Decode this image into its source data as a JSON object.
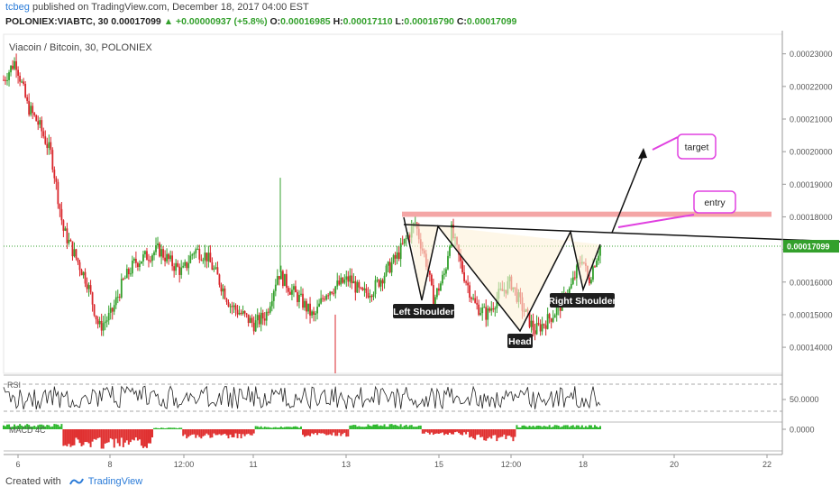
{
  "header": {
    "user": "tcbeg",
    "published_text": " published on TradingView.com, December 18, 2017 04:00 EST",
    "symbol_line": "POLONIEX:VIABTC, 30",
    "price": "0.00017099",
    "change": "▲ +0.00000937 (+5.8%)",
    "o_label": "O:",
    "o_value": "0.00016985",
    "h_label": "H:",
    "h_value": "0.00017110",
    "l_label": "L:",
    "l_value": "0.00016790",
    "c_label": "C:",
    "c_value": "0.00017099"
  },
  "footer": {
    "created_with": "Created with",
    "brand": "TradingView"
  },
  "chart_data": {
    "type": "candlestick",
    "title": "Viacoin / Bitcoin, 30, POLONIEX",
    "ylim": [
      0.000132,
      0.000236
    ],
    "y_ticks": [
      "0.00014000",
      "0.00015000",
      "0.00016000",
      "0.00017000",
      "0.00018000",
      "0.00019000",
      "0.00020000",
      "0.00021000",
      "0.00022000",
      "0.00023000"
    ],
    "y_tick_values": [
      0.00014,
      0.00015,
      0.00016,
      0.00017,
      0.00018,
      0.00019,
      0.0002,
      0.00021,
      0.00022,
      0.00023
    ],
    "x_ticks": [
      "6",
      "8",
      "12:00",
      "11",
      "13",
      "15",
      "12:00",
      "18",
      "20",
      "22"
    ],
    "last_price_label": "0.00017099",
    "last_price": 0.00017099,
    "colors": {
      "up": "#33a02c",
      "down": "#d9262b",
      "rsi_line": "#222222",
      "macd_pos": "#2eb82e",
      "macd_neg": "#e03030",
      "pattern_line": "#111111",
      "resistance_zone": "#f08080",
      "annotation": "#e040e0",
      "price_line": "#33a02c"
    },
    "price_path": [
      [
        0.0,
        0.000222
      ],
      [
        0.02,
        0.000228
      ],
      [
        0.04,
        0.000214
      ],
      [
        0.06,
        0.000208
      ],
      [
        0.08,
        0.000199
      ],
      [
        0.1,
        0.000176
      ],
      [
        0.12,
        0.000168
      ],
      [
        0.14,
        0.00016
      ],
      [
        0.16,
        0.000146
      ],
      [
        0.18,
        0.00015
      ],
      [
        0.2,
        0.00016
      ],
      [
        0.22,
        0.000166
      ],
      [
        0.24,
        0.000168
      ],
      [
        0.26,
        0.00017
      ],
      [
        0.28,
        0.000166
      ],
      [
        0.3,
        0.000163
      ],
      [
        0.32,
        0.00017
      ],
      [
        0.34,
        0.000168
      ],
      [
        0.36,
        0.000161
      ],
      [
        0.38,
        0.000153
      ],
      [
        0.4,
        0.00015
      ],
      [
        0.42,
        0.000147
      ],
      [
        0.44,
        0.00015
      ],
      [
        0.46,
        0.000163
      ],
      [
        0.48,
        0.000158
      ],
      [
        0.5,
        0.000154
      ],
      [
        0.52,
        0.000149
      ],
      [
        0.54,
        0.000157
      ],
      [
        0.56,
        0.000159
      ],
      [
        0.58,
        0.000161
      ],
      [
        0.6,
        0.000156
      ],
      [
        0.62,
        0.000158
      ],
      [
        0.64,
        0.000163
      ],
      [
        0.66,
        0.000168
      ],
      [
        0.68,
        0.000175
      ],
      [
        0.69,
        0.000178
      ],
      [
        0.71,
        0.000165
      ],
      [
        0.72,
        0.000154
      ],
      [
        0.74,
        0.000163
      ],
      [
        0.75,
        0.000176
      ],
      [
        0.77,
        0.000163
      ],
      [
        0.79,
        0.000153
      ],
      [
        0.81,
        0.00015
      ],
      [
        0.83,
        0.000156
      ],
      [
        0.85,
        0.00016
      ],
      [
        0.87,
        0.000152
      ],
      [
        0.89,
        0.000145
      ],
      [
        0.91,
        0.000148
      ],
      [
        0.93,
        0.000152
      ],
      [
        0.95,
        0.000158
      ],
      [
        0.97,
        0.000168
      ],
      [
        0.98,
        0.00016
      ],
      [
        0.99,
        0.000166
      ],
      [
        1.0,
        0.000171
      ]
    ],
    "annotations": [
      {
        "text": "Left Shoulder"
      },
      {
        "text": "Head"
      },
      {
        "text": "Right Shoulder"
      },
      {
        "text": "entry"
      },
      {
        "text": "target"
      }
    ],
    "rsi": {
      "label": "RSI",
      "value_label": "50.0000"
    },
    "macd": {
      "label": "MACD 4C",
      "value_label": "0.0000"
    }
  }
}
